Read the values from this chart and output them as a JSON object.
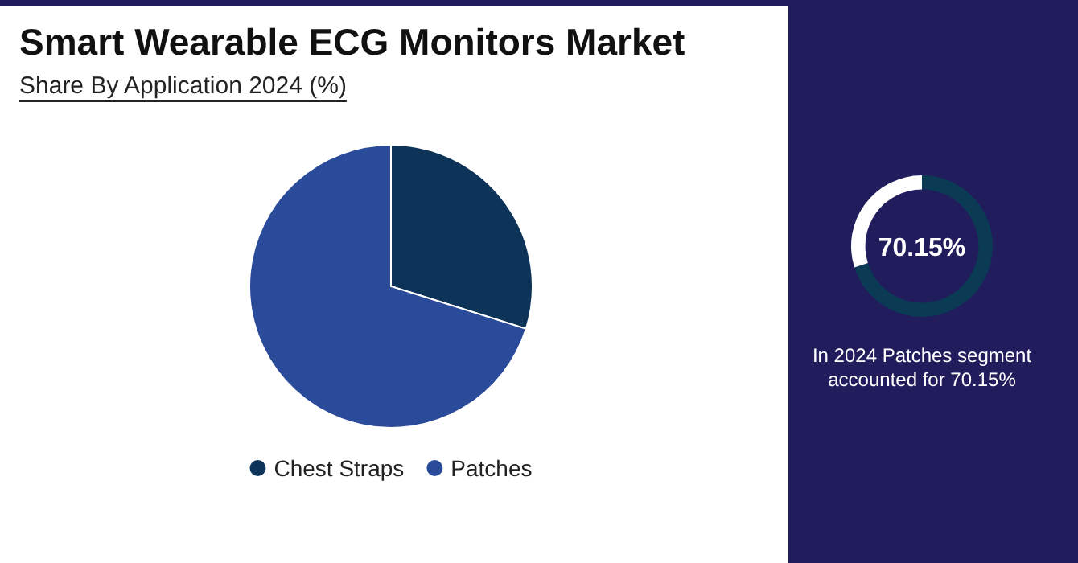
{
  "chart_data": [
    {
      "type": "pie",
      "title": "Smart Wearable ECG Monitors Market",
      "subtitle": "Share By Application 2024 (%)",
      "categories": [
        "Chest Straps",
        "Patches"
      ],
      "values": [
        29.85,
        70.15
      ],
      "colors": [
        "#0e3358",
        "#2a4a9a"
      ],
      "legend": "bottom"
    },
    {
      "type": "donut",
      "categories": [
        null,
        null
      ],
      "values": [
        70.15,
        29.85
      ],
      "colors": [
        "#0b3a55",
        "#ffffff"
      ],
      "annotations": [
        "70.15%",
        "In 2024 Patches segment accounted for 70.15%"
      ]
    }
  ]
}
